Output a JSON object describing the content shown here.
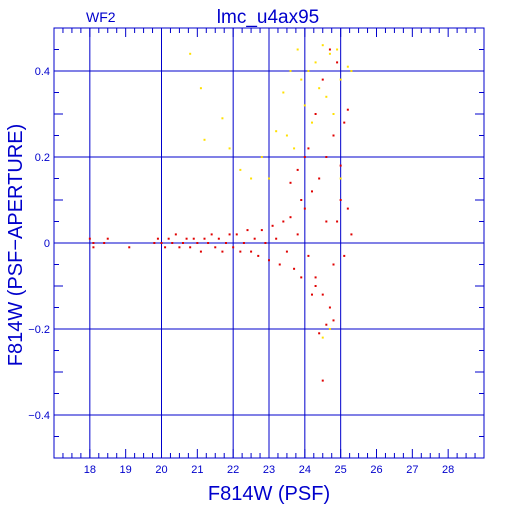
{
  "chart_data": {
    "type": "scatter",
    "title": "lmc_u4ax95",
    "corner_label": "WF2",
    "xlabel": "F814W (PSF)",
    "ylabel": "F814W (PSF−APERTURE)",
    "xlim": [
      17.0,
      29.0
    ],
    "ylim": [
      -0.5,
      0.5
    ],
    "x_ticks": [
      18,
      19,
      20,
      21,
      22,
      23,
      24,
      25,
      26,
      27,
      28
    ],
    "x_tick_labels": [
      "18",
      "19",
      "20",
      "21",
      "22",
      "23",
      "24",
      "25",
      "26",
      "27",
      "28"
    ],
    "y_ticks": [
      -0.4,
      -0.2,
      0,
      0.2,
      0.4
    ],
    "y_tick_labels": [
      "−0.4",
      "−0.2",
      "0",
      "0.2",
      "0.4"
    ],
    "x_major_gridlines": [
      18,
      20,
      22,
      23,
      24,
      25
    ],
    "y_major_gridlines": [
      -0.4,
      -0.2,
      0,
      0.2,
      0.4
    ],
    "grid": true,
    "colors": {
      "axes": "#0000cc",
      "red_points": "#e00000",
      "yellow_points": "#ffe000",
      "background": "#ffffff"
    },
    "series": [
      {
        "color": "red",
        "points": [
          [
            18.0,
            0.01
          ],
          [
            18.1,
            0.0
          ],
          [
            18.1,
            -0.01
          ],
          [
            18.4,
            0.0
          ],
          [
            18.5,
            0.01
          ],
          [
            19.1,
            -0.01
          ],
          [
            19.8,
            0.0
          ],
          [
            19.9,
            0.01
          ],
          [
            20.0,
            0.0
          ],
          [
            20.1,
            -0.01
          ],
          [
            20.2,
            0.01
          ],
          [
            20.3,
            0.0
          ],
          [
            20.4,
            0.02
          ],
          [
            20.5,
            -0.01
          ],
          [
            20.6,
            0.0
          ],
          [
            20.7,
            0.01
          ],
          [
            20.8,
            -0.01
          ],
          [
            20.9,
            0.01
          ],
          [
            21.0,
            0.0
          ],
          [
            21.1,
            -0.02
          ],
          [
            21.2,
            0.01
          ],
          [
            21.3,
            0.0
          ],
          [
            21.4,
            0.02
          ],
          [
            21.5,
            -0.01
          ],
          [
            21.6,
            0.01
          ],
          [
            21.7,
            -0.02
          ],
          [
            21.8,
            0.0
          ],
          [
            21.9,
            0.02
          ],
          [
            22.0,
            -0.01
          ],
          [
            22.1,
            0.02
          ],
          [
            22.2,
            -0.02
          ],
          [
            22.3,
            0.0
          ],
          [
            22.4,
            0.03
          ],
          [
            22.5,
            -0.02
          ],
          [
            22.6,
            0.01
          ],
          [
            22.7,
            -0.03
          ],
          [
            22.8,
            0.03
          ],
          [
            22.9,
            0.0
          ],
          [
            23.0,
            -0.04
          ],
          [
            23.1,
            0.04
          ],
          [
            23.2,
            0.01
          ],
          [
            23.3,
            -0.05
          ],
          [
            23.4,
            0.05
          ],
          [
            23.5,
            -0.02
          ],
          [
            23.6,
            0.06
          ],
          [
            23.7,
            -0.06
          ],
          [
            23.8,
            0.02
          ],
          [
            23.9,
            -0.08
          ],
          [
            24.0,
            0.08
          ],
          [
            24.1,
            -0.03
          ],
          [
            24.2,
            0.12
          ],
          [
            24.3,
            -0.1
          ],
          [
            24.4,
            0.15
          ],
          [
            24.5,
            -0.12
          ],
          [
            24.6,
            0.2
          ],
          [
            24.7,
            -0.15
          ],
          [
            24.8,
            0.25
          ],
          [
            24.9,
            0.05
          ],
          [
            25.0,
            0.18
          ],
          [
            25.1,
            0.28
          ],
          [
            25.2,
            0.31
          ],
          [
            25.3,
            0.02
          ],
          [
            24.1,
            0.22
          ],
          [
            24.3,
            0.3
          ],
          [
            24.5,
            0.38
          ],
          [
            24.7,
            0.45
          ],
          [
            24.9,
            0.42
          ],
          [
            24.0,
            0.2
          ],
          [
            23.8,
            0.17
          ],
          [
            23.6,
            0.14
          ],
          [
            24.4,
            -0.21
          ],
          [
            24.6,
            -0.19
          ],
          [
            24.8,
            -0.18
          ],
          [
            24.2,
            -0.12
          ],
          [
            24.5,
            -0.32
          ],
          [
            24.3,
            -0.08
          ],
          [
            23.9,
            0.1
          ],
          [
            24.6,
            0.05
          ],
          [
            24.8,
            -0.05
          ],
          [
            25.0,
            0.1
          ],
          [
            25.1,
            -0.03
          ],
          [
            25.2,
            0.08
          ]
        ]
      },
      {
        "color": "yellow",
        "points": [
          [
            20.8,
            0.44
          ],
          [
            21.1,
            0.36
          ],
          [
            21.2,
            0.24
          ],
          [
            21.7,
            0.29
          ],
          [
            21.9,
            0.22
          ],
          [
            22.2,
            0.17
          ],
          [
            22.5,
            0.15
          ],
          [
            22.8,
            0.2
          ],
          [
            23.0,
            0.15
          ],
          [
            23.2,
            0.26
          ],
          [
            23.4,
            0.35
          ],
          [
            23.6,
            0.4
          ],
          [
            23.8,
            0.45
          ],
          [
            23.9,
            0.38
          ],
          [
            24.0,
            0.32
          ],
          [
            24.2,
            0.28
          ],
          [
            24.3,
            0.42
          ],
          [
            24.5,
            0.46
          ],
          [
            24.6,
            0.34
          ],
          [
            24.8,
            0.3
          ],
          [
            24.9,
            0.45
          ],
          [
            25.0,
            0.38
          ],
          [
            25.2,
            0.41
          ],
          [
            25.3,
            0.4
          ],
          [
            23.5,
            0.25
          ],
          [
            23.7,
            0.22
          ],
          [
            24.1,
            0.4
          ],
          [
            24.4,
            0.36
          ],
          [
            24.7,
            0.44
          ],
          [
            24.5,
            -0.22
          ],
          [
            24.7,
            -0.2
          ],
          [
            25.0,
            0.15
          ]
        ]
      }
    ]
  }
}
